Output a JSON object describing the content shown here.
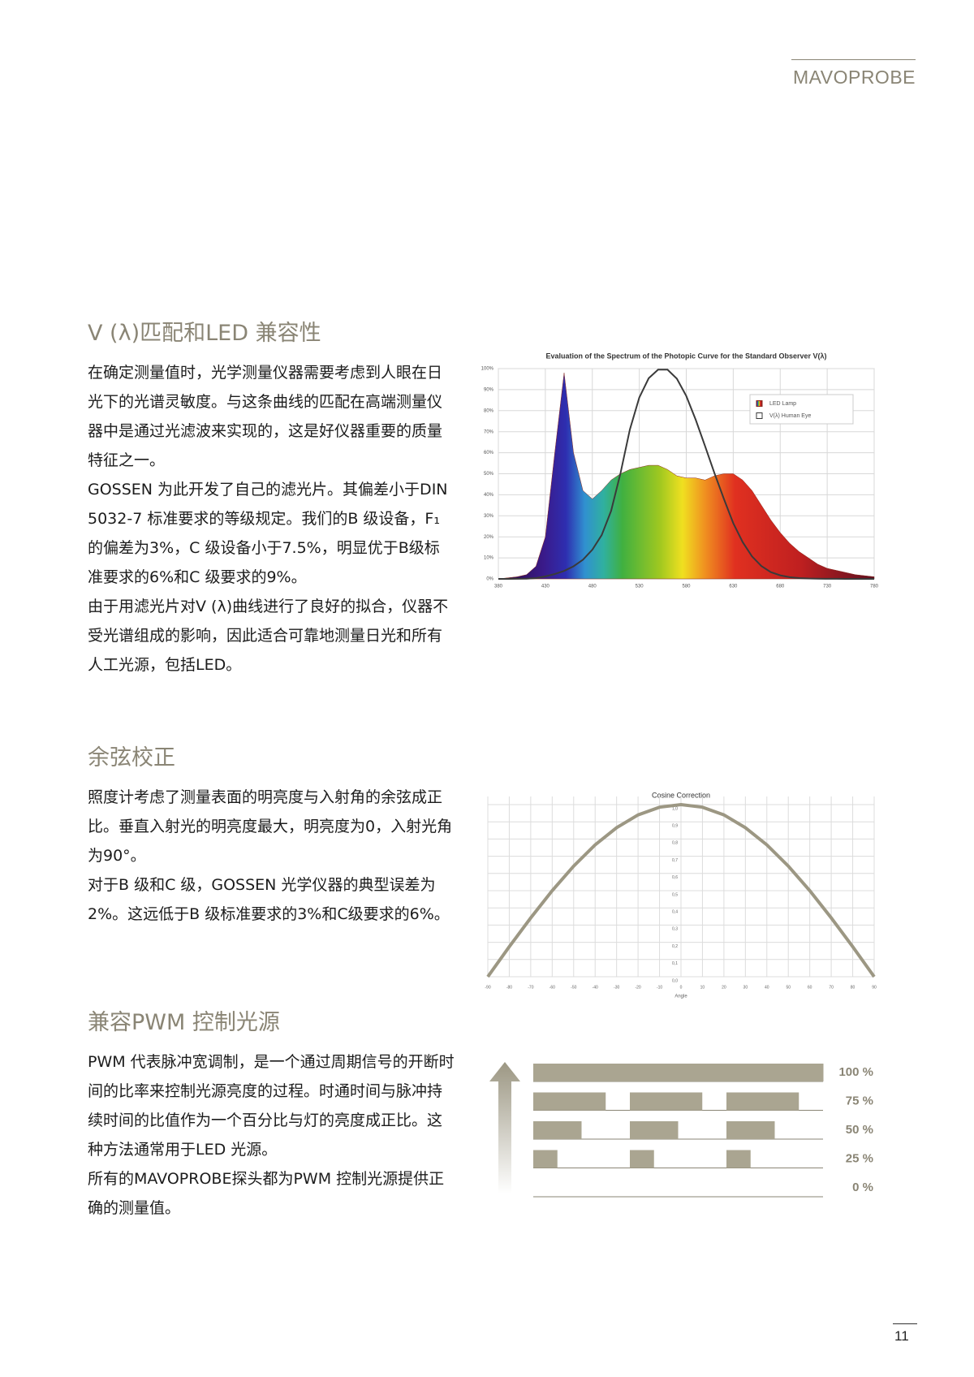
{
  "header": {
    "brand": "MAVOPROBE"
  },
  "sections": [
    {
      "title": "V (λ)匹配和LED 兼容性",
      "paragraphs": [
        "在确定测量值时，光学测量仪器需要考虑到人眼在日光下的光谱灵敏度。与这条曲线的匹配在高端测量仪器中是通过光滤波来实现的，这是好仪器重要的质量特征之一。",
        "GOSSEN 为此开发了自己的滤光片。其偏差小于DIN 5032-7 标准要求的等级规定。我们的B 级设备，F₁的偏差为3%，C 级设备小于7.5%，明显优于B级标准要求的6%和C 级要求的9%。",
        "由于用滤光片对V (λ)曲线进行了良好的拟合，仪器不受光谱组成的影响，因此适合可靠地测量日光和所有人工光源，包括LED。"
      ]
    },
    {
      "title": "余弦校正",
      "paragraphs": [
        "照度计考虑了测量表面的明亮度与入射角的余弦成正比。垂直入射光的明亮度最大，明亮度为0，入射光角为90°。",
        "对于B 级和C 级，GOSSEN 光学仪器的典型误差为2%。这远低于B 级标准要求的3%和C级要求的6%。"
      ]
    },
    {
      "title": "兼容PWM 控制光源",
      "paragraphs": [
        "PWM 代表脉冲宽调制，是一个通过周期信号的开断时间的比率来控制光源亮度的过程。时通时间与脉冲持续时间的比值作为一个百分比与灯的亮度成正比。这种方法通常用于LED 光源。",
        "所有的MAVOPROBE探头都为PWM 控制光源提供正确的测量值。"
      ]
    }
  ],
  "chart_data": [
    {
      "type": "area",
      "title": "Evaluation of the Spectrum of the Photopic Curve for the Standard Observer V(λ)",
      "x": [
        380,
        390,
        400,
        410,
        420,
        430,
        440,
        450,
        460,
        470,
        480,
        490,
        500,
        510,
        520,
        530,
        540,
        550,
        560,
        570,
        580,
        590,
        600,
        610,
        620,
        630,
        640,
        650,
        660,
        670,
        680,
        690,
        700,
        710,
        720,
        730,
        740,
        750,
        760,
        770,
        780
      ],
      "series": [
        {
          "name": "LED Lamp",
          "color": "#8b2a1e",
          "values": [
            0,
            0.5,
            1,
            2,
            6,
            20,
            60,
            98,
            60,
            42,
            38,
            42,
            47,
            50,
            52,
            53,
            54,
            54,
            52,
            49,
            48,
            48,
            47,
            49,
            50,
            50,
            47,
            42,
            35,
            28,
            22,
            17,
            13,
            10,
            7,
            5,
            4,
            3,
            2,
            1.5,
            1
          ]
        },
        {
          "name": "V(λ) Human Eye",
          "color": "#3a3a3a",
          "values": [
            0,
            0.01,
            0.04,
            0.12,
            0.4,
            1.2,
            2.3,
            3.8,
            6,
            9.1,
            13.9,
            20.8,
            32.3,
            50.3,
            71,
            86.2,
            95.4,
            99.5,
            99.5,
            95.2,
            87,
            75.7,
            63.1,
            50.3,
            38.1,
            26.5,
            17.5,
            10.7,
            6.1,
            3.2,
            1.7,
            0.8,
            0.4,
            0.2,
            0.1,
            0.05,
            0.02,
            0.01,
            0.01,
            0,
            0
          ]
        }
      ],
      "xlim": [
        380,
        780
      ],
      "xticks": [
        380,
        430,
        480,
        530,
        580,
        630,
        680,
        730,
        780
      ],
      "ylim": [
        0,
        100
      ],
      "yticks": [
        {
          "value": 0,
          "label": "0%"
        },
        {
          "value": 10,
          "label": "10%"
        },
        {
          "value": 20,
          "label": "20%"
        },
        {
          "value": 30,
          "label": "30%"
        },
        {
          "value": 40,
          "label": "40%"
        },
        {
          "value": 50,
          "label": "50%"
        },
        {
          "value": 60,
          "label": "60%"
        },
        {
          "value": 70,
          "label": "70%"
        },
        {
          "value": 80,
          "label": "80%"
        },
        {
          "value": 90,
          "label": "90%"
        },
        {
          "value": 100,
          "label": "100%"
        }
      ],
      "grid": true
    },
    {
      "type": "line",
      "title": "Cosine Correction",
      "xlabel": "Angle",
      "x": [
        -90,
        -80,
        -70,
        -60,
        -50,
        -40,
        -30,
        -20,
        -10,
        0,
        10,
        20,
        30,
        40,
        50,
        60,
        70,
        80,
        90
      ],
      "values": [
        0,
        0.174,
        0.342,
        0.5,
        0.643,
        0.766,
        0.866,
        0.94,
        0.985,
        1,
        0.985,
        0.94,
        0.866,
        0.766,
        0.643,
        0.5,
        0.342,
        0.174,
        0
      ],
      "color": "#9c9783",
      "xlim": [
        -90,
        90
      ],
      "xticks": [
        -90,
        -80,
        -70,
        -60,
        -50,
        -40,
        -30,
        -20,
        -10,
        0,
        10,
        20,
        30,
        40,
        50,
        60,
        70,
        80,
        90
      ],
      "ylim": [
        0,
        1
      ],
      "yticks": [
        {
          "value": 0,
          "label": "0,0"
        },
        {
          "value": 0.1,
          "label": "0,1"
        },
        {
          "value": 0.2,
          "label": "0,2"
        },
        {
          "value": 0.3,
          "label": "0,3"
        },
        {
          "value": 0.4,
          "label": "0,4"
        },
        {
          "value": 0.5,
          "label": "0,5"
        },
        {
          "value": 0.6,
          "label": "0,6"
        },
        {
          "value": 0.7,
          "label": "0,7"
        },
        {
          "value": 0.8,
          "label": "0,8"
        },
        {
          "value": 0.9,
          "label": "0,9"
        },
        {
          "value": 1,
          "label": "1,0"
        }
      ],
      "grid": true
    },
    {
      "type": "pwm",
      "values": [
        100,
        75,
        50,
        25,
        0
      ],
      "value_labels": [
        "100 %",
        "75 %",
        "50 %",
        "25 %",
        "0 %"
      ],
      "color": "#aaa591",
      "label_color": "#8a8575"
    }
  ],
  "footer": {
    "page_number": "11"
  }
}
